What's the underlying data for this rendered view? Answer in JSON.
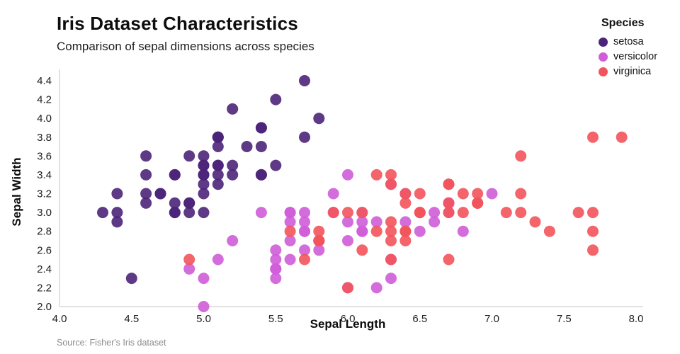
{
  "chart_data": {
    "type": "scatter",
    "title": "Iris Dataset Characteristics",
    "subtitle": "Comparison of sepal dimensions across species",
    "xlabel": "Sepal Length",
    "ylabel": "Sepal Width",
    "legend_title": "Species",
    "legend_position": "top-right",
    "source_note": "Source: Fisher's Iris dataset",
    "grid": false,
    "xlim": [
      4.0,
      8.0
    ],
    "ylim": [
      2.0,
      4.4
    ],
    "xticks": [
      4.0,
      4.5,
      5.0,
      5.5,
      6.0,
      6.5,
      7.0,
      7.5,
      8.0
    ],
    "yticks": [
      2.0,
      2.2,
      2.4,
      2.6,
      2.8,
      3.0,
      3.2,
      3.4,
      3.6,
      3.8,
      4.0,
      4.2,
      4.4
    ],
    "series": [
      {
        "name": "setosa",
        "color": "#4b2379",
        "points": [
          [
            5.1,
            3.5
          ],
          [
            4.9,
            3.0
          ],
          [
            4.7,
            3.2
          ],
          [
            4.6,
            3.1
          ],
          [
            5.0,
            3.6
          ],
          [
            5.4,
            3.9
          ],
          [
            4.6,
            3.4
          ],
          [
            5.0,
            3.4
          ],
          [
            4.4,
            2.9
          ],
          [
            4.9,
            3.1
          ],
          [
            5.4,
            3.7
          ],
          [
            4.8,
            3.4
          ],
          [
            4.8,
            3.0
          ],
          [
            4.3,
            3.0
          ],
          [
            5.8,
            4.0
          ],
          [
            5.7,
            4.4
          ],
          [
            5.4,
            3.9
          ],
          [
            5.1,
            3.5
          ],
          [
            5.7,
            3.8
          ],
          [
            5.1,
            3.8
          ],
          [
            5.4,
            3.4
          ],
          [
            5.1,
            3.7
          ],
          [
            4.6,
            3.6
          ],
          [
            5.1,
            3.3
          ],
          [
            4.8,
            3.4
          ],
          [
            5.0,
            3.0
          ],
          [
            5.0,
            3.4
          ],
          [
            5.2,
            3.5
          ],
          [
            5.2,
            3.4
          ],
          [
            4.7,
            3.2
          ],
          [
            4.8,
            3.1
          ],
          [
            5.4,
            3.4
          ],
          [
            5.2,
            4.1
          ],
          [
            5.5,
            4.2
          ],
          [
            4.9,
            3.1
          ],
          [
            5.0,
            3.2
          ],
          [
            5.5,
            3.5
          ],
          [
            4.9,
            3.6
          ],
          [
            4.4,
            3.0
          ],
          [
            5.1,
            3.4
          ],
          [
            5.0,
            3.5
          ],
          [
            4.5,
            2.3
          ],
          [
            4.4,
            3.2
          ],
          [
            5.0,
            3.5
          ],
          [
            5.1,
            3.8
          ],
          [
            4.8,
            3.0
          ],
          [
            5.1,
            3.8
          ],
          [
            4.6,
            3.2
          ],
          [
            5.3,
            3.7
          ],
          [
            5.0,
            3.3
          ]
        ]
      },
      {
        "name": "versicolor",
        "color": "#cf5dd8",
        "points": [
          [
            7.0,
            3.2
          ],
          [
            6.4,
            3.2
          ],
          [
            6.9,
            3.1
          ],
          [
            5.5,
            2.3
          ],
          [
            6.5,
            2.8
          ],
          [
            5.7,
            2.8
          ],
          [
            6.3,
            3.3
          ],
          [
            4.9,
            2.4
          ],
          [
            6.6,
            2.9
          ],
          [
            5.2,
            2.7
          ],
          [
            5.0,
            2.0
          ],
          [
            5.9,
            3.0
          ],
          [
            6.0,
            2.2
          ],
          [
            6.1,
            2.9
          ],
          [
            5.6,
            2.9
          ],
          [
            6.7,
            3.1
          ],
          [
            5.6,
            3.0
          ],
          [
            5.8,
            2.7
          ],
          [
            6.2,
            2.2
          ],
          [
            5.6,
            2.5
          ],
          [
            5.9,
            3.2
          ],
          [
            6.1,
            2.8
          ],
          [
            6.3,
            2.5
          ],
          [
            6.1,
            2.8
          ],
          [
            6.4,
            2.9
          ],
          [
            6.6,
            3.0
          ],
          [
            6.8,
            2.8
          ],
          [
            6.7,
            3.0
          ],
          [
            6.0,
            2.9
          ],
          [
            5.7,
            2.6
          ],
          [
            5.5,
            2.4
          ],
          [
            5.5,
            2.4
          ],
          [
            5.8,
            2.7
          ],
          [
            6.0,
            2.7
          ],
          [
            5.4,
            3.0
          ],
          [
            6.0,
            3.4
          ],
          [
            6.7,
            3.1
          ],
          [
            6.3,
            2.3
          ],
          [
            5.6,
            3.0
          ],
          [
            5.5,
            2.5
          ],
          [
            5.5,
            2.6
          ],
          [
            6.1,
            3.0
          ],
          [
            5.8,
            2.6
          ],
          [
            5.0,
            2.3
          ],
          [
            5.6,
            2.7
          ],
          [
            5.7,
            3.0
          ],
          [
            5.7,
            2.9
          ],
          [
            6.2,
            2.9
          ],
          [
            5.1,
            2.5
          ],
          [
            5.7,
            2.8
          ]
        ]
      },
      {
        "name": "virginica",
        "color": "#f2545b",
        "points": [
          [
            6.3,
            3.3
          ],
          [
            5.8,
            2.7
          ],
          [
            7.1,
            3.0
          ],
          [
            6.3,
            2.9
          ],
          [
            6.5,
            3.0
          ],
          [
            7.6,
            3.0
          ],
          [
            4.9,
            2.5
          ],
          [
            7.3,
            2.9
          ],
          [
            6.7,
            2.5
          ],
          [
            7.2,
            3.6
          ],
          [
            6.5,
            3.2
          ],
          [
            6.4,
            2.7
          ],
          [
            6.8,
            3.0
          ],
          [
            5.7,
            2.5
          ],
          [
            5.8,
            2.8
          ],
          [
            6.4,
            3.2
          ],
          [
            6.5,
            3.0
          ],
          [
            7.7,
            3.8
          ],
          [
            7.7,
            2.6
          ],
          [
            6.0,
            2.2
          ],
          [
            6.9,
            3.2
          ],
          [
            5.6,
            2.8
          ],
          [
            7.7,
            2.8
          ],
          [
            6.3,
            2.7
          ],
          [
            6.7,
            3.3
          ],
          [
            7.2,
            3.2
          ],
          [
            6.2,
            2.8
          ],
          [
            6.1,
            3.0
          ],
          [
            6.4,
            2.8
          ],
          [
            7.2,
            3.0
          ],
          [
            7.4,
            2.8
          ],
          [
            7.9,
            3.8
          ],
          [
            6.4,
            2.8
          ],
          [
            6.3,
            2.8
          ],
          [
            6.1,
            2.6
          ],
          [
            7.7,
            3.0
          ],
          [
            6.3,
            3.4
          ],
          [
            6.4,
            3.1
          ],
          [
            6.0,
            3.0
          ],
          [
            6.9,
            3.1
          ],
          [
            6.7,
            3.1
          ],
          [
            6.9,
            3.1
          ],
          [
            5.8,
            2.7
          ],
          [
            6.8,
            3.2
          ],
          [
            6.7,
            3.3
          ],
          [
            6.7,
            3.0
          ],
          [
            6.3,
            2.5
          ],
          [
            6.5,
            3.0
          ],
          [
            6.2,
            3.4
          ],
          [
            5.9,
            3.0
          ]
        ]
      }
    ]
  }
}
